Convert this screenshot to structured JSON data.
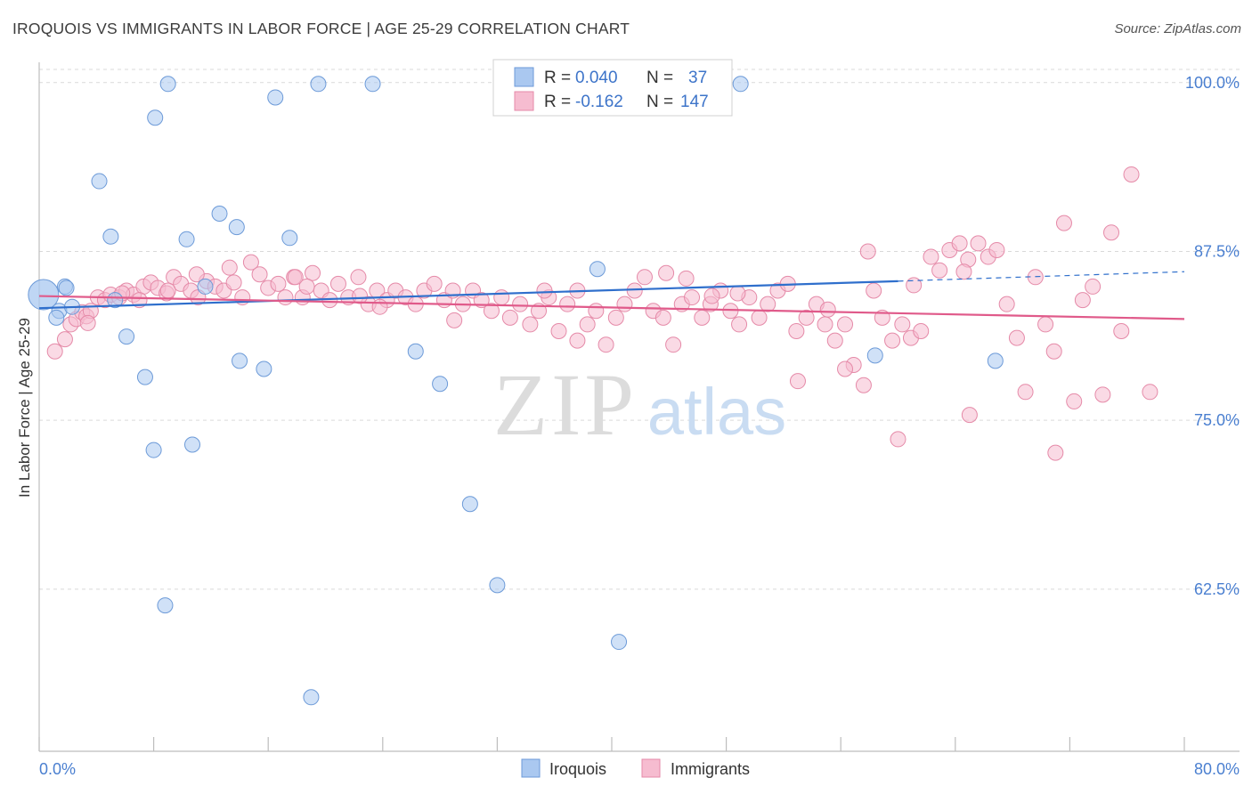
{
  "header": {
    "title": "IROQUOIS VS IMMIGRANTS IN LABOR FORCE | AGE 25-29 CORRELATION CHART",
    "source": "Source: ZipAtlas.com"
  },
  "watermark": {
    "zip": "ZIP",
    "atlas": "atlas"
  },
  "colors": {
    "blue_fill": "#aac8f0",
    "blue_stroke": "#6c9ad8",
    "blue_line": "#2f6fcc",
    "pink_fill": "#f6bcd0",
    "pink_stroke": "#e58aa8",
    "pink_line": "#e05a8a",
    "tick_text": "#4a7fd0",
    "grid": "#d9d9d9"
  },
  "legend_top": [
    {
      "r_label": "R = ",
      "r_value": "0.040",
      "n_label": "N = ",
      "n_value": "37"
    },
    {
      "r_label": "R = ",
      "r_value": "-0.162",
      "n_label": "N = ",
      "n_value": "147"
    }
  ],
  "chart_data": {
    "type": "scatter",
    "title": "IROQUOIS VS IMMIGRANTS IN LABOR FORCE | AGE 25-29 CORRELATION CHART",
    "xlabel": "",
    "ylabel": "In Labor Force | Age 25-29",
    "xlim": [
      0,
      80
    ],
    "ylim": [
      50.5,
      101.5
    ],
    "x_tick_labels": [
      {
        "value": 0,
        "label": "0.0%"
      },
      {
        "value": 80,
        "label": "80.0%"
      }
    ],
    "y_tick_labels": [
      {
        "value": 100,
        "label": "100.0%"
      },
      {
        "value": 87.5,
        "label": "87.5%"
      },
      {
        "value": 75,
        "label": "75.0%"
      },
      {
        "value": 62.5,
        "label": "62.5%"
      }
    ],
    "grid": true,
    "legend": "bottom-center",
    "series": [
      {
        "name": "Iroquois",
        "color": "#aac8f0",
        "trend": {
          "x": [
            0,
            60
          ],
          "y": [
            83.3,
            85.3
          ],
          "dashed_to": [
            80,
            86.0
          ]
        },
        "points": [
          [
            0.3,
            84.3
          ],
          [
            1.4,
            83.1
          ],
          [
            1.2,
            82.6
          ],
          [
            2.3,
            83.4
          ],
          [
            1.8,
            84.9
          ],
          [
            4.2,
            92.7
          ],
          [
            5.0,
            88.6
          ],
          [
            6.1,
            81.2
          ],
          [
            7.4,
            78.2
          ],
          [
            8.1,
            97.4
          ],
          [
            9.0,
            99.9
          ],
          [
            10.3,
            88.4
          ],
          [
            11.6,
            84.9
          ],
          [
            12.6,
            90.3
          ],
          [
            13.8,
            89.3
          ],
          [
            14.0,
            79.4
          ],
          [
            16.5,
            98.9
          ],
          [
            17.5,
            88.5
          ],
          [
            15.7,
            78.8
          ],
          [
            19.5,
            99.9
          ],
          [
            23.3,
            99.9
          ],
          [
            26.3,
            80.1
          ],
          [
            28.0,
            77.7
          ],
          [
            8.0,
            72.8
          ],
          [
            10.7,
            73.2
          ],
          [
            30.1,
            68.8
          ],
          [
            32.0,
            62.8
          ],
          [
            8.8,
            61.3
          ],
          [
            40.5,
            58.6
          ],
          [
            19.0,
            54.5
          ],
          [
            41.0,
            99.9
          ],
          [
            39.0,
            86.2
          ],
          [
            49.0,
            99.9
          ],
          [
            58.4,
            79.8
          ],
          [
            66.8,
            79.4
          ],
          [
            1.9,
            84.8
          ],
          [
            5.3,
            83.9
          ]
        ]
      },
      {
        "name": "Immigrants",
        "color": "#f6bcd0",
        "trend": {
          "x": [
            0,
            80
          ],
          "y": [
            84.2,
            82.5
          ]
        },
        "points": [
          [
            1.1,
            80.1
          ],
          [
            1.8,
            81.0
          ],
          [
            2.2,
            82.1
          ],
          [
            2.6,
            82.5
          ],
          [
            3.0,
            83.0
          ],
          [
            3.3,
            82.7
          ],
          [
            3.6,
            83.1
          ],
          [
            4.1,
            84.1
          ],
          [
            4.6,
            83.9
          ],
          [
            5.0,
            84.3
          ],
          [
            5.6,
            84.1
          ],
          [
            6.1,
            84.6
          ],
          [
            6.6,
            84.3
          ],
          [
            7.3,
            84.9
          ],
          [
            7.8,
            85.2
          ],
          [
            8.3,
            84.8
          ],
          [
            8.9,
            84.4
          ],
          [
            9.4,
            85.6
          ],
          [
            9.9,
            85.1
          ],
          [
            10.6,
            84.6
          ],
          [
            11.1,
            84.1
          ],
          [
            11.7,
            85.3
          ],
          [
            12.3,
            84.9
          ],
          [
            12.9,
            84.6
          ],
          [
            13.6,
            85.2
          ],
          [
            14.2,
            84.1
          ],
          [
            14.8,
            86.7
          ],
          [
            15.4,
            85.8
          ],
          [
            16.0,
            84.8
          ],
          [
            16.7,
            85.1
          ],
          [
            17.2,
            84.1
          ],
          [
            17.8,
            85.6
          ],
          [
            18.4,
            84.1
          ],
          [
            19.1,
            85.9
          ],
          [
            19.7,
            84.6
          ],
          [
            20.3,
            83.9
          ],
          [
            20.9,
            85.1
          ],
          [
            21.6,
            84.1
          ],
          [
            22.3,
            85.6
          ],
          [
            23.0,
            83.6
          ],
          [
            23.6,
            84.6
          ],
          [
            24.3,
            83.9
          ],
          [
            24.9,
            84.6
          ],
          [
            25.6,
            84.1
          ],
          [
            26.3,
            83.6
          ],
          [
            26.9,
            84.6
          ],
          [
            27.6,
            85.1
          ],
          [
            28.3,
            83.9
          ],
          [
            28.9,
            84.6
          ],
          [
            29.6,
            83.6
          ],
          [
            30.3,
            84.6
          ],
          [
            30.9,
            83.9
          ],
          [
            31.6,
            83.1
          ],
          [
            32.3,
            84.1
          ],
          [
            32.9,
            82.6
          ],
          [
            33.6,
            83.6
          ],
          [
            34.3,
            82.1
          ],
          [
            34.9,
            83.1
          ],
          [
            35.6,
            84.1
          ],
          [
            36.3,
            81.6
          ],
          [
            36.9,
            83.6
          ],
          [
            37.6,
            84.6
          ],
          [
            38.3,
            82.1
          ],
          [
            38.9,
            83.1
          ],
          [
            39.6,
            80.6
          ],
          [
            40.3,
            82.6
          ],
          [
            40.9,
            83.6
          ],
          [
            41.6,
            84.6
          ],
          [
            42.3,
            85.6
          ],
          [
            42.9,
            83.1
          ],
          [
            43.6,
            82.6
          ],
          [
            44.3,
            80.6
          ],
          [
            44.9,
            83.6
          ],
          [
            45.6,
            84.1
          ],
          [
            46.3,
            82.6
          ],
          [
            46.9,
            83.6
          ],
          [
            47.6,
            84.6
          ],
          [
            48.3,
            83.1
          ],
          [
            48.9,
            82.1
          ],
          [
            49.6,
            84.1
          ],
          [
            50.3,
            82.6
          ],
          [
            50.9,
            83.6
          ],
          [
            51.6,
            84.6
          ],
          [
            52.3,
            85.1
          ],
          [
            52.9,
            81.6
          ],
          [
            53.6,
            82.6
          ],
          [
            54.3,
            83.6
          ],
          [
            54.9,
            82.1
          ],
          [
            55.6,
            80.9
          ],
          [
            56.3,
            82.1
          ],
          [
            56.9,
            79.1
          ],
          [
            57.6,
            77.6
          ],
          [
            58.3,
            84.6
          ],
          [
            58.9,
            82.6
          ],
          [
            59.6,
            80.9
          ],
          [
            60.3,
            82.1
          ],
          [
            60.9,
            81.1
          ],
          [
            61.6,
            81.6
          ],
          [
            62.3,
            87.1
          ],
          [
            62.9,
            86.1
          ],
          [
            63.6,
            87.6
          ],
          [
            64.3,
            88.1
          ],
          [
            64.9,
            86.9
          ],
          [
            65.6,
            88.1
          ],
          [
            66.3,
            87.1
          ],
          [
            66.9,
            87.6
          ],
          [
            67.6,
            83.6
          ],
          [
            68.3,
            81.1
          ],
          [
            68.9,
            77.1
          ],
          [
            69.6,
            85.6
          ],
          [
            70.3,
            82.1
          ],
          [
            70.9,
            80.1
          ],
          [
            71.6,
            89.6
          ],
          [
            72.3,
            76.4
          ],
          [
            72.9,
            83.9
          ],
          [
            73.6,
            84.9
          ],
          [
            74.3,
            76.9
          ],
          [
            74.9,
            88.9
          ],
          [
            75.6,
            81.6
          ],
          [
            76.3,
            93.2
          ],
          [
            77.6,
            77.1
          ],
          [
            71.0,
            72.6
          ],
          [
            65.0,
            75.4
          ],
          [
            60.0,
            73.6
          ],
          [
            53.0,
            77.9
          ],
          [
            47.0,
            84.2
          ],
          [
            45.2,
            85.5
          ],
          [
            35.3,
            84.6
          ],
          [
            23.8,
            83.4
          ],
          [
            22.4,
            84.2
          ],
          [
            18.7,
            84.9
          ],
          [
            13.3,
            86.3
          ],
          [
            11.0,
            85.8
          ],
          [
            9.0,
            84.6
          ],
          [
            7.0,
            83.9
          ],
          [
            3.4,
            82.2
          ],
          [
            64.6,
            86.0
          ],
          [
            61.1,
            85.0
          ],
          [
            57.9,
            87.5
          ],
          [
            55.1,
            83.2
          ],
          [
            56.3,
            78.8
          ],
          [
            43.8,
            85.9
          ],
          [
            37.6,
            80.9
          ],
          [
            48.8,
            84.4
          ],
          [
            29.0,
            82.4
          ],
          [
            17.9,
            85.6
          ],
          [
            5.8,
            84.4
          ]
        ]
      }
    ]
  },
  "legend_bottom": [
    {
      "label": "Iroquois"
    },
    {
      "label": "Immigrants"
    }
  ]
}
